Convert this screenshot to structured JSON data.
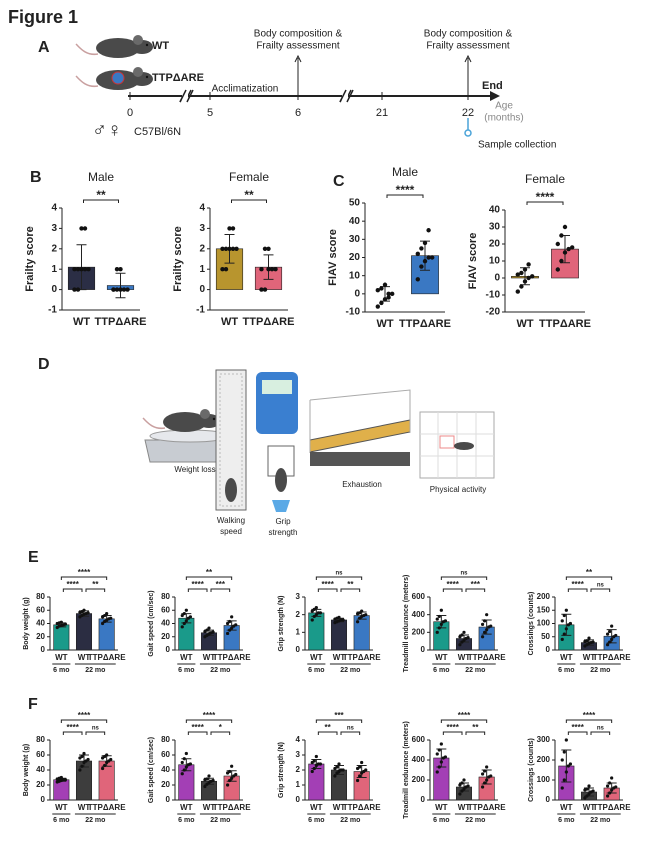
{
  "figure_title": "Figure 1",
  "panels": [
    "A",
    "B",
    "C",
    "D",
    "E",
    "F"
  ],
  "panel_a": {
    "strains": [
      "WT",
      "TTPΔARE"
    ],
    "timeline_ticks": [
      0,
      5,
      6,
      21,
      22
    ],
    "phase": "Acclimatization",
    "assessment": [
      "Body composition &",
      "Frailty assessment"
    ],
    "end": "End",
    "age_label": [
      "Age",
      "(months)"
    ],
    "sample": "Sample collection",
    "sex_symbols": "♂♀",
    "strain_background": "C57Bl/6N"
  },
  "panel_d": {
    "labels": [
      [
        "Weight loss"
      ],
      [
        "Walking",
        "speed"
      ],
      [
        "Grip",
        "strength"
      ],
      [
        "Exhaustion"
      ],
      [
        "Physical activity"
      ]
    ]
  },
  "chart_data": [
    {
      "type": "bar",
      "title": "Male",
      "ylabel": "Frailty score",
      "categories": [
        "WT",
        "TTPΔARE"
      ],
      "colors": [
        "#2b2e45",
        "#3a78c3"
      ],
      "values": [
        1.1,
        0.2
      ],
      "errors": [
        1.1,
        0.6
      ],
      "points": [
        [
          0,
          0,
          1,
          1,
          1,
          1,
          1,
          3,
          3
        ],
        [
          0,
          0,
          0,
          0,
          0,
          0,
          1,
          1
        ]
      ],
      "ylim": [
        -1,
        4
      ],
      "yticks": [
        -1,
        0,
        1,
        2,
        3,
        4
      ],
      "significance": [
        {
          "from": 0,
          "to": 1,
          "label": "**"
        }
      ]
    },
    {
      "type": "bar",
      "title": "Female",
      "ylabel": "Frailty score",
      "categories": [
        "WT",
        "TTPΔARE"
      ],
      "colors": [
        "#b8952e",
        "#e0657a"
      ],
      "values": [
        2.0,
        1.1
      ],
      "errors": [
        0.7,
        0.6
      ],
      "points": [
        [
          1,
          1,
          2,
          2,
          2,
          2,
          2,
          3,
          3
        ],
        [
          0,
          0,
          1,
          1,
          1,
          1,
          2,
          2
        ]
      ],
      "ylim": [
        -1,
        4
      ],
      "yticks": [
        -1,
        0,
        1,
        2,
        3,
        4
      ],
      "significance": [
        {
          "from": 0,
          "to": 1,
          "label": "**"
        }
      ]
    },
    {
      "type": "bar",
      "title": "Male",
      "ylabel": "FIAV score",
      "categories": [
        "WT",
        "TTPΔARE"
      ],
      "colors": [
        "#2b2e45",
        "#3a78c3"
      ],
      "values": [
        0,
        21
      ],
      "errors": [
        4,
        8
      ],
      "points": [
        [
          -7,
          -5,
          -3,
          0,
          0,
          2,
          3,
          5,
          -2
        ],
        [
          8,
          15,
          18,
          20,
          20,
          22,
          25,
          28,
          35
        ]
      ],
      "ylim": [
        -10,
        50
      ],
      "yticks": [
        -10,
        0,
        10,
        20,
        30,
        40,
        50
      ],
      "significance": [
        {
          "from": 0,
          "to": 1,
          "label": "****"
        }
      ]
    },
    {
      "type": "bar",
      "title": "Female",
      "ylabel": "FIAV score",
      "categories": [
        "WT",
        "TTPΔARE"
      ],
      "colors": [
        "#b8952e",
        "#e0657a"
      ],
      "values": [
        1,
        17
      ],
      "errors": [
        5,
        8
      ],
      "points": [
        [
          -8,
          -5,
          -2,
          0,
          1,
          2,
          3,
          5,
          8
        ],
        [
          5,
          10,
          15,
          17,
          18,
          20,
          25,
          30
        ]
      ],
      "ylim": [
        -20,
        40
      ],
      "yticks": [
        -20,
        -10,
        0,
        10,
        20,
        30,
        40
      ],
      "significance": [
        {
          "from": 0,
          "to": 1,
          "label": "****"
        }
      ]
    },
    {
      "type": "bar",
      "ylabel": "Body weight (g)",
      "categories": [
        "WT",
        "WT",
        "TTPΔARE"
      ],
      "colors": [
        "#1a9a8a",
        "#2b2d42",
        "#3a78c3"
      ],
      "values": [
        38,
        55,
        47
      ],
      "errors": [
        3,
        4,
        5
      ],
      "points": [
        [
          34,
          36,
          37,
          38,
          39,
          40,
          41,
          42
        ],
        [
          50,
          52,
          54,
          55,
          56,
          57,
          58,
          60
        ],
        [
          40,
          43,
          45,
          47,
          48,
          50,
          52,
          55
        ]
      ],
      "ylim": [
        0,
        80
      ],
      "yticks": [
        0,
        20,
        40,
        60,
        80
      ],
      "significance": [
        {
          "from": 0,
          "to": 2,
          "label": "****"
        },
        {
          "from": 0,
          "to": 1,
          "label": "****"
        },
        {
          "from": 1,
          "to": 2,
          "label": "**"
        }
      ],
      "groups": [
        {
          "label": "6 mo",
          "from": 0,
          "to": 0
        },
        {
          "label": "22 mo",
          "from": 1,
          "to": 2
        }
      ]
    },
    {
      "type": "bar",
      "ylabel": "Gait speed (cm/sec)",
      "categories": [
        "WT",
        "WT",
        "TTPΔARE"
      ],
      "colors": [
        "#1a9a8a",
        "#2b2d42",
        "#3a78c3"
      ],
      "values": [
        48,
        26,
        37
      ],
      "errors": [
        7,
        4,
        7
      ],
      "points": [
        [
          35,
          40,
          44,
          48,
          50,
          52,
          55,
          60
        ],
        [
          20,
          22,
          24,
          26,
          27,
          28,
          30,
          33
        ],
        [
          25,
          30,
          33,
          36,
          38,
          40,
          43,
          50
        ]
      ],
      "ylim": [
        0,
        80
      ],
      "yticks": [
        0,
        20,
        40,
        60,
        80
      ],
      "significance": [
        {
          "from": 0,
          "to": 2,
          "label": "**"
        },
        {
          "from": 0,
          "to": 1,
          "label": "****"
        },
        {
          "from": 1,
          "to": 2,
          "label": "***"
        }
      ],
      "groups": [
        {
          "label": "6 mo",
          "from": 0,
          "to": 0
        },
        {
          "label": "22 mo",
          "from": 1,
          "to": 2
        }
      ]
    },
    {
      "type": "bar",
      "ylabel": "Grip strength (N)",
      "categories": [
        "WT",
        "WT",
        "TTPΔARE"
      ],
      "colors": [
        "#1a9a8a",
        "#2b2d42",
        "#3a78c3"
      ],
      "values": [
        2.1,
        1.7,
        1.95
      ],
      "errors": [
        0.2,
        0.1,
        0.2
      ],
      "points": [
        [
          1.7,
          1.9,
          2.0,
          2.1,
          2.1,
          2.2,
          2.3,
          2.4
        ],
        [
          1.55,
          1.6,
          1.65,
          1.7,
          1.7,
          1.75,
          1.8,
          1.85
        ],
        [
          1.6,
          1.8,
          1.9,
          1.95,
          2.0,
          2.05,
          2.1,
          2.2
        ]
      ],
      "ylim": [
        0,
        3
      ],
      "yticks": [
        0,
        1,
        2,
        3
      ],
      "significance": [
        {
          "from": 0,
          "to": 2,
          "label": "ns"
        },
        {
          "from": 0,
          "to": 1,
          "label": "****"
        },
        {
          "from": 1,
          "to": 2,
          "label": "**"
        }
      ],
      "groups": [
        {
          "label": "6 mo",
          "from": 0,
          "to": 0
        },
        {
          "label": "22 mo",
          "from": 1,
          "to": 2
        }
      ]
    },
    {
      "type": "bar",
      "ylabel": "Treadmill endurance (meters)",
      "categories": [
        "WT",
        "WT",
        "TTPΔARE"
      ],
      "colors": [
        "#1a9a8a",
        "#2b2d42",
        "#3a78c3"
      ],
      "values": [
        320,
        130,
        260
      ],
      "errors": [
        70,
        40,
        80
      ],
      "points": [
        [
          200,
          250,
          290,
          320,
          330,
          350,
          380,
          450
        ],
        [
          60,
          90,
          110,
          130,
          140,
          150,
          170,
          200
        ],
        [
          150,
          200,
          230,
          260,
          270,
          290,
          330,
          400
        ]
      ],
      "ylim": [
        0,
        600
      ],
      "yticks": [
        0,
        200,
        400,
        600
      ],
      "significance": [
        {
          "from": 0,
          "to": 2,
          "label": "ns"
        },
        {
          "from": 0,
          "to": 1,
          "label": "****"
        },
        {
          "from": 1,
          "to": 2,
          "label": "***"
        }
      ],
      "groups": [
        {
          "label": "6 mo",
          "from": 0,
          "to": 0
        },
        {
          "label": "22 mo",
          "from": 1,
          "to": 2
        }
      ]
    },
    {
      "type": "bar",
      "ylabel": "Crossings (counts)",
      "categories": [
        "WT",
        "WT",
        "TTPΔARE"
      ],
      "colors": [
        "#1a9a8a",
        "#2b2d42",
        "#3a78c3"
      ],
      "values": [
        95,
        28,
        52
      ],
      "errors": [
        40,
        10,
        25
      ],
      "points": [
        [
          40,
          60,
          80,
          95,
          100,
          110,
          130,
          150
        ],
        [
          15,
          20,
          25,
          28,
          30,
          32,
          35,
          45
        ],
        [
          20,
          30,
          40,
          50,
          55,
          60,
          70,
          90
        ]
      ],
      "ylim": [
        0,
        200
      ],
      "yticks": [
        0,
        50,
        100,
        150,
        200
      ],
      "significance": [
        {
          "from": 0,
          "to": 2,
          "label": "**"
        },
        {
          "from": 0,
          "to": 1,
          "label": "****"
        },
        {
          "from": 1,
          "to": 2,
          "label": "ns"
        }
      ],
      "groups": [
        {
          "label": "6 mo",
          "from": 0,
          "to": 0
        },
        {
          "label": "22 mo",
          "from": 1,
          "to": 2
        }
      ]
    },
    {
      "type": "bar",
      "ylabel": "Body weight (g)",
      "categories": [
        "WT",
        "WT",
        "TTPΔARE"
      ],
      "colors": [
        "#a33fb5",
        "#3d3d3d",
        "#e0657a"
      ],
      "values": [
        27,
        52,
        52
      ],
      "errors": [
        2,
        8,
        7
      ],
      "points": [
        [
          24,
          25,
          26,
          27,
          27,
          28,
          29,
          30
        ],
        [
          40,
          45,
          50,
          52,
          54,
          56,
          58,
          62
        ],
        [
          42,
          46,
          50,
          52,
          54,
          56,
          58,
          60
        ]
      ],
      "ylim": [
        0,
        80
      ],
      "yticks": [
        0,
        20,
        40,
        60,
        80
      ],
      "significance": [
        {
          "from": 0,
          "to": 2,
          "label": "****"
        },
        {
          "from": 0,
          "to": 1,
          "label": "****"
        },
        {
          "from": 1,
          "to": 2,
          "label": "ns"
        }
      ],
      "groups": [
        {
          "label": "6 mo",
          "from": 0,
          "to": 0
        },
        {
          "label": "22 mo",
          "from": 1,
          "to": 2
        }
      ]
    },
    {
      "type": "bar",
      "ylabel": "Gait speed (cm/sec)",
      "categories": [
        "WT",
        "WT",
        "TTPΔARE"
      ],
      "colors": [
        "#a33fb5",
        "#3d3d3d",
        "#e0657a"
      ],
      "values": [
        47,
        25,
        32
      ],
      "errors": [
        8,
        4,
        7
      ],
      "points": [
        [
          35,
          40,
          44,
          47,
          48,
          50,
          55,
          62
        ],
        [
          18,
          21,
          23,
          25,
          26,
          27,
          28,
          32
        ],
        [
          20,
          26,
          29,
          32,
          34,
          36,
          38,
          45
        ]
      ],
      "ylim": [
        0,
        80
      ],
      "yticks": [
        0,
        20,
        40,
        60,
        80
      ],
      "significance": [
        {
          "from": 0,
          "to": 2,
          "label": "****"
        },
        {
          "from": 0,
          "to": 1,
          "label": "****"
        },
        {
          "from": 1,
          "to": 2,
          "label": "*"
        }
      ],
      "groups": [
        {
          "label": "6 mo",
          "from": 0,
          "to": 0
        },
        {
          "label": "22 mo",
          "from": 1,
          "to": 2
        }
      ]
    },
    {
      "type": "bar",
      "ylabel": "Grip strength (N)",
      "categories": [
        "WT",
        "WT",
        "TTPΔARE"
      ],
      "colors": [
        "#a33fb5",
        "#3d3d3d",
        "#e0657a"
      ],
      "values": [
        2.4,
        2.0,
        1.9
      ],
      "errors": [
        0.3,
        0.3,
        0.4
      ],
      "points": [
        [
          1.9,
          2.1,
          2.3,
          2.4,
          2.4,
          2.5,
          2.6,
          2.9
        ],
        [
          1.6,
          1.8,
          1.9,
          2.0,
          2.0,
          2.1,
          2.2,
          2.4
        ],
        [
          1.3,
          1.6,
          1.8,
          1.9,
          2.0,
          2.1,
          2.2,
          2.5
        ]
      ],
      "ylim": [
        0,
        4
      ],
      "yticks": [
        0,
        1,
        2,
        3,
        4
      ],
      "significance": [
        {
          "from": 0,
          "to": 2,
          "label": "***"
        },
        {
          "from": 0,
          "to": 1,
          "label": "**"
        },
        {
          "from": 1,
          "to": 2,
          "label": "ns"
        }
      ],
      "groups": [
        {
          "label": "6 mo",
          "from": 0,
          "to": 0
        },
        {
          "label": "22 mo",
          "from": 1,
          "to": 2
        }
      ]
    },
    {
      "type": "bar",
      "ylabel": "Treadmill endurance (meters)",
      "categories": [
        "WT",
        "WT",
        "TTPΔARE"
      ],
      "colors": [
        "#a33fb5",
        "#3d3d3d",
        "#e0657a"
      ],
      "values": [
        420,
        130,
        230
      ],
      "errors": [
        90,
        40,
        70
      ],
      "points": [
        [
          280,
          330,
          380,
          420,
          430,
          460,
          500,
          560
        ],
        [
          60,
          90,
          110,
          130,
          140,
          150,
          170,
          200
        ],
        [
          130,
          170,
          200,
          230,
          240,
          260,
          290,
          330
        ]
      ],
      "ylim": [
        0,
        600
      ],
      "yticks": [
        0,
        200,
        400,
        600
      ],
      "significance": [
        {
          "from": 0,
          "to": 2,
          "label": "****"
        },
        {
          "from": 0,
          "to": 1,
          "label": "****"
        },
        {
          "from": 1,
          "to": 2,
          "label": "**"
        }
      ],
      "groups": [
        {
          "label": "6 mo",
          "from": 0,
          "to": 0
        },
        {
          "label": "22 mo",
          "from": 1,
          "to": 2
        }
      ]
    },
    {
      "type": "bar",
      "ylabel": "Crossings (counts)",
      "categories": [
        "WT",
        "WT",
        "TTPΔARE"
      ],
      "colors": [
        "#a33fb5",
        "#3d3d3d",
        "#e0657a"
      ],
      "values": [
        170,
        40,
        60
      ],
      "errors": [
        80,
        20,
        25
      ],
      "points": [
        [
          60,
          100,
          140,
          170,
          180,
          200,
          240,
          300
        ],
        [
          10,
          20,
          30,
          40,
          45,
          50,
          55,
          70
        ],
        [
          20,
          35,
          50,
          60,
          65,
          70,
          85,
          110
        ]
      ],
      "ylim": [
        0,
        300
      ],
      "yticks": [
        0,
        100,
        200,
        300
      ],
      "significance": [
        {
          "from": 0,
          "to": 2,
          "label": "****"
        },
        {
          "from": 0,
          "to": 1,
          "label": "****"
        },
        {
          "from": 1,
          "to": 2,
          "label": "ns"
        }
      ],
      "groups": [
        {
          "label": "6 mo",
          "from": 0,
          "to": 0
        },
        {
          "label": "22 mo",
          "from": 1,
          "to": 2
        }
      ]
    }
  ]
}
